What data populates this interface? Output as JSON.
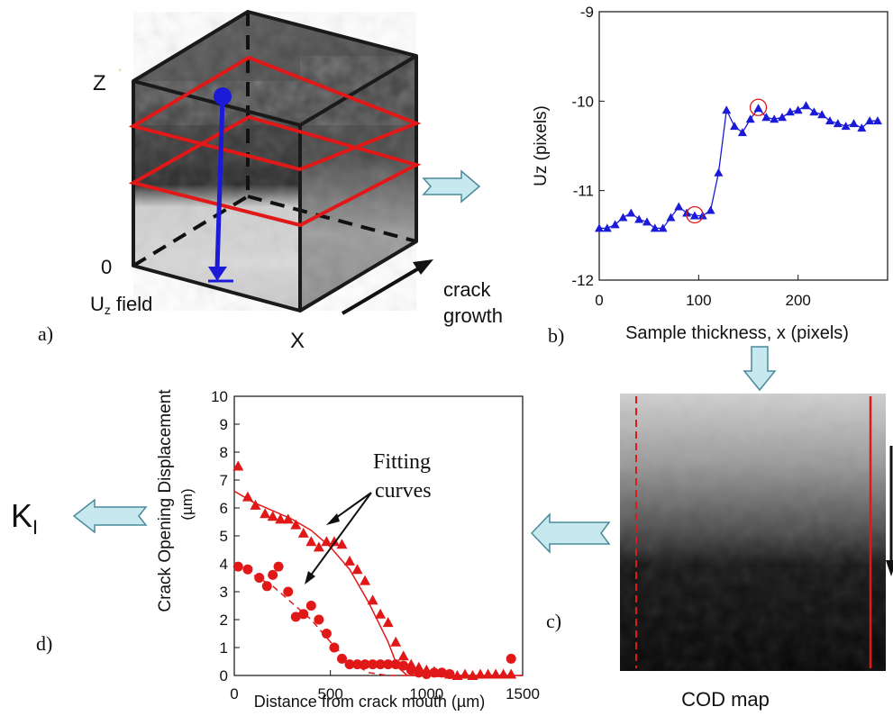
{
  "panel_a": {
    "label": "a)",
    "axis_z": "Z",
    "axis_x": "X",
    "origin": "0",
    "field_main": "U",
    "field_sub": "z",
    "field_rest": " field",
    "growth_line1": "crack",
    "growth_line2": "growth"
  },
  "panel_b": {
    "label": "b)",
    "ylabel": "Uz (pixels)",
    "xlabel": "Sample thickness, x (pixels)"
  },
  "panel_c": {
    "label": "c)",
    "caption": "COD map"
  },
  "panel_d": {
    "label": "d)",
    "ylabel_line1": "Crack Opening Displacement",
    "ylabel_line2": "(µm)",
    "xlabel": "Distance from crack mouth (µm)",
    "annotation_line1": "Fitting",
    "annotation_line2": "curves"
  },
  "result": {
    "main": "K",
    "sub": "I"
  },
  "colors": {
    "blue": "#1a1ad8",
    "red": "#e01818",
    "arrow_fill": "#c6e8ee",
    "arrow_stroke": "#4a8a9a"
  },
  "chart_data": [
    {
      "id": "uz-profile",
      "type": "line",
      "xlabel": "Sample thickness, x (pixels)",
      "ylabel": "Uz (pixels)",
      "xlim": [
        0,
        290
      ],
      "ylim": [
        -12,
        -9
      ],
      "xticks": [
        0,
        100,
        200
      ],
      "yticks": [
        -12,
        -11,
        -10,
        -9
      ],
      "series": [
        {
          "x": [
            0,
            8,
            16,
            24,
            32,
            40,
            48,
            56,
            64,
            72,
            80,
            88,
            96,
            104,
            112,
            120,
            128,
            136,
            144,
            152,
            160,
            168,
            176,
            184,
            192,
            200,
            208,
            216,
            224,
            232,
            240,
            248,
            256,
            264,
            272,
            280
          ],
          "y": [
            -11.42,
            -11.42,
            -11.38,
            -11.3,
            -11.25,
            -11.32,
            -11.35,
            -11.42,
            -11.42,
            -11.3,
            -11.18,
            -11.25,
            -11.28,
            -11.28,
            -11.22,
            -10.8,
            -10.1,
            -10.28,
            -10.35,
            -10.2,
            -10.08,
            -10.18,
            -10.2,
            -10.18,
            -10.12,
            -10.1,
            -10.05,
            -10.12,
            -10.15,
            -10.22,
            -10.25,
            -10.28,
            -10.25,
            -10.3,
            -10.22,
            -10.22
          ]
        }
      ],
      "highlighted_x": [
        96,
        160
      ]
    },
    {
      "id": "cod-profile",
      "type": "scatter",
      "xlabel": "Distance from crack mouth (µm)",
      "ylabel": "Crack Opening Displacement (µm)",
      "xlim": [
        0,
        1500
      ],
      "ylim": [
        0,
        10
      ],
      "xticks": [
        0,
        500,
        1000,
        1500
      ],
      "yticks": [
        0,
        1,
        2,
        3,
        4,
        5,
        6,
        7,
        8,
        9,
        10
      ],
      "series": [
        {
          "marker": "triangle",
          "x": [
            20,
            70,
            110,
            160,
            200,
            240,
            280,
            320,
            360,
            400,
            440,
            480,
            520,
            560,
            600,
            640,
            680,
            720,
            760,
            800,
            840,
            880,
            920,
            960,
            1000,
            1040,
            1080,
            1120,
            1160,
            1200,
            1240,
            1280,
            1320,
            1360,
            1400,
            1440
          ],
          "y": [
            7.5,
            6.4,
            6.1,
            5.8,
            5.7,
            5.6,
            5.6,
            5.4,
            5.1,
            4.8,
            4.6,
            4.8,
            4.8,
            4.7,
            4.1,
            3.8,
            3.4,
            2.7,
            2.2,
            1.9,
            1.2,
            0.7,
            0.4,
            0.3,
            0.2,
            0.15,
            0.1,
            0.05,
            0.0,
            0.05,
            0.0,
            0.05,
            0.05,
            0.05,
            0.05,
            0.05
          ],
          "fit_x": [
            0,
            100,
            200,
            300,
            400,
            500,
            600,
            700,
            750,
            800,
            850,
            900,
            1000,
            1100,
            1200,
            1300,
            1400,
            1500
          ],
          "fit_y": [
            6.6,
            6.2,
            5.9,
            5.6,
            5.2,
            4.6,
            3.8,
            2.6,
            1.9,
            1.2,
            0.3,
            0.0,
            0.0,
            0.0,
            0.0,
            0.0,
            0.0,
            0.0
          ]
        },
        {
          "marker": "circle",
          "x": [
            20,
            70,
            130,
            170,
            200,
            230,
            280,
            320,
            360,
            400,
            440,
            480,
            520,
            560,
            600,
            640,
            680,
            720,
            760,
            800,
            840,
            880,
            920,
            960,
            1000,
            1040,
            1080,
            1120,
            1440
          ],
          "y": [
            3.9,
            3.8,
            3.5,
            3.2,
            3.6,
            3.9,
            3.0,
            2.1,
            2.2,
            2.5,
            2.0,
            1.5,
            1.0,
            0.6,
            0.4,
            0.4,
            0.4,
            0.4,
            0.4,
            0.4,
            0.4,
            0.35,
            0.2,
            0.1,
            0.05,
            0.1,
            0.1,
            0.05,
            0.6
          ],
          "fit_x": [
            0,
            100,
            200,
            300,
            400,
            500,
            600,
            700,
            800,
            900,
            1000,
            1100,
            1200,
            1300,
            1400,
            1500
          ],
          "fit_y": [
            3.9,
            3.6,
            3.2,
            2.6,
            2.0,
            1.2,
            0.5,
            0.1,
            0.0,
            0.0,
            0.0,
            0.0,
            0.0,
            0.0,
            0.0,
            0.0
          ]
        }
      ]
    }
  ]
}
